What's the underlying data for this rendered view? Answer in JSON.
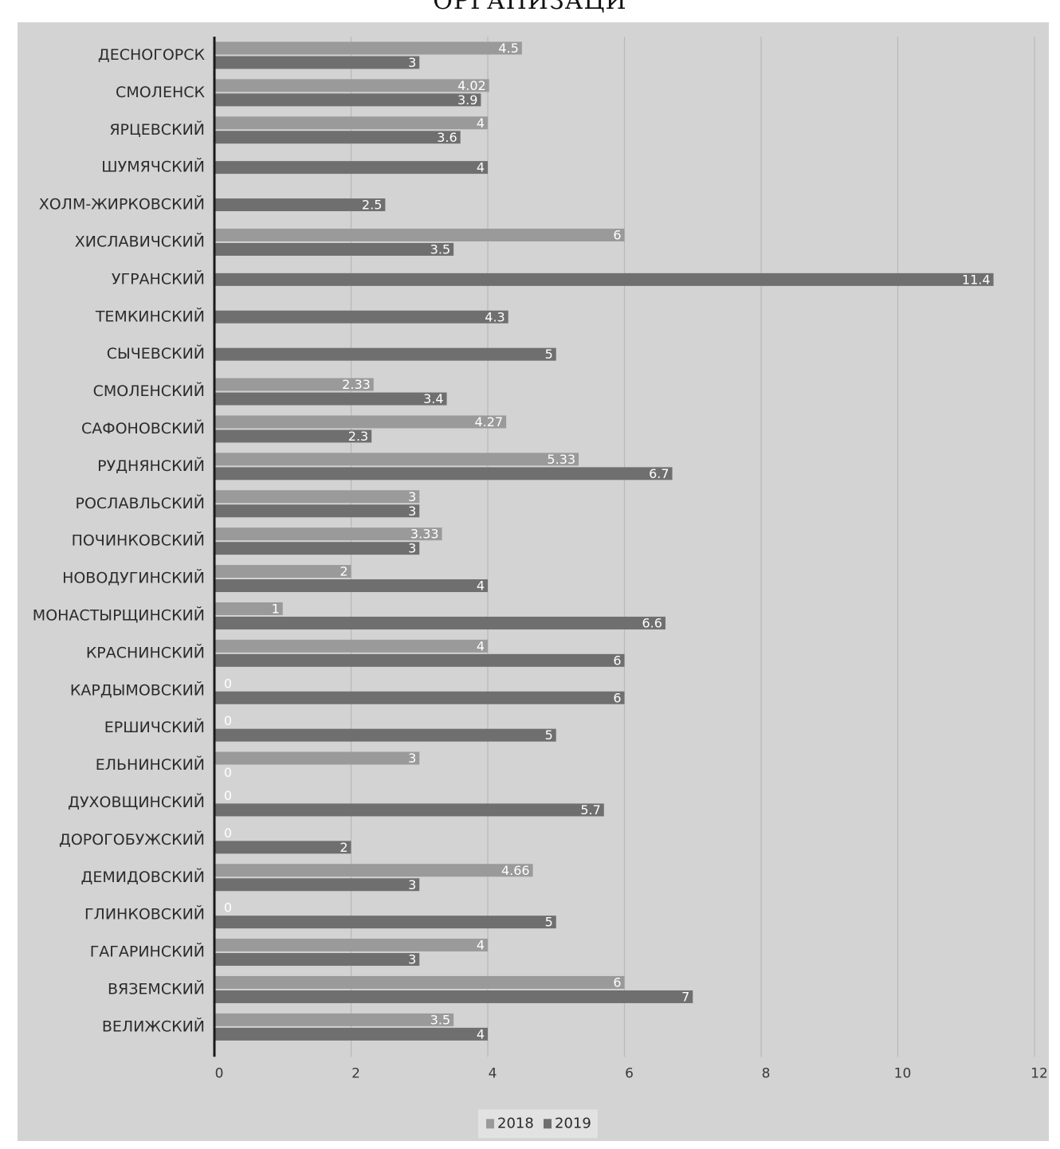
{
  "title": "ОРГАНИЗАЦИ",
  "chart_data": {
    "type": "bar",
    "orientation": "horizontal",
    "categories": [
      "ДЕСНОГОРСК",
      "СМОЛЕНСК",
      "ЯРЦЕВСКИЙ",
      "ШУМЯЧСКИЙ",
      "ХОЛМ-ЖИРКОВСКИЙ",
      "ХИСЛАВИЧСКИЙ",
      "УГРАНСКИЙ",
      "ТЕМКИНСКИЙ",
      "СЫЧЕВСКИЙ",
      "СМОЛЕНСКИЙ",
      "САФОНОВСКИЙ",
      "РУДНЯНСКИЙ",
      "РОСЛАВЛЬСКИЙ",
      "ПОЧИНКОВСКИЙ",
      "НОВОДУГИНСКИЙ",
      "МОНАСТЫРЩИНСКИЙ",
      "КРАСНИНСКИЙ",
      "КАРДЫМОВСКИЙ",
      "ЕРШИЧСКИЙ",
      "ЕЛЬНИНСКИЙ",
      "ДУХОВЩИНСКИЙ",
      "ДОРОГОБУЖСКИЙ",
      "ДЕМИДОВСКИЙ",
      "ГЛИНКОВСКИЙ",
      "ГАГАРИНСКИЙ",
      "ВЯЗЕМСКИЙ",
      "ВЕЛИЖСКИЙ"
    ],
    "series": [
      {
        "name": "2018",
        "values": [
          4.5,
          4.02,
          4,
          null,
          null,
          6,
          null,
          null,
          null,
          2.33,
          4.27,
          5.33,
          3,
          3.33,
          2,
          1,
          4,
          0,
          0,
          3,
          0,
          0,
          4.66,
          0,
          4,
          6,
          3.5
        ],
        "labels": [
          "4.5",
          "4.02",
          "4",
          "",
          "",
          "6",
          "",
          "",
          "",
          "2.33",
          "4.27",
          "5.33",
          "3",
          "3.33",
          "2",
          "1",
          "4",
          "0",
          "0",
          "3",
          "0",
          "0",
          "4.66",
          "0",
          "4",
          "6",
          "3.5"
        ]
      },
      {
        "name": "2019",
        "values": [
          3,
          3.9,
          3.6,
          4,
          2.5,
          3.5,
          11.4,
          4.3,
          5,
          3.4,
          2.3,
          6.7,
          3,
          3,
          4,
          6.6,
          6,
          6,
          5,
          0,
          5.7,
          2,
          3,
          5,
          3,
          7,
          4
        ],
        "labels": [
          "3",
          "3.9",
          "3.6",
          "4",
          "2.5",
          "3.5",
          "11.4",
          "4.3",
          "5",
          "3.4",
          "2.3",
          "6.7",
          "3",
          "3",
          "4",
          "6.6",
          "6",
          "6",
          "5",
          "0",
          "5.7",
          "2",
          "3",
          "5",
          "3",
          "7",
          "4"
        ]
      }
    ],
    "xlim": [
      0,
      12
    ],
    "xticks": [
      "0",
      "2",
      "4",
      "6",
      "8",
      "10",
      "12"
    ],
    "grid": "vertical",
    "legend": {
      "placement": "bottom",
      "entries": [
        "2018",
        "2019"
      ]
    },
    "colors": {
      "2018": "#9a9a9a",
      "2019": "#6f6f6f",
      "background": "#d3d3d3",
      "grid": "#b8b8b8",
      "axis": "#1a1a1a"
    }
  }
}
